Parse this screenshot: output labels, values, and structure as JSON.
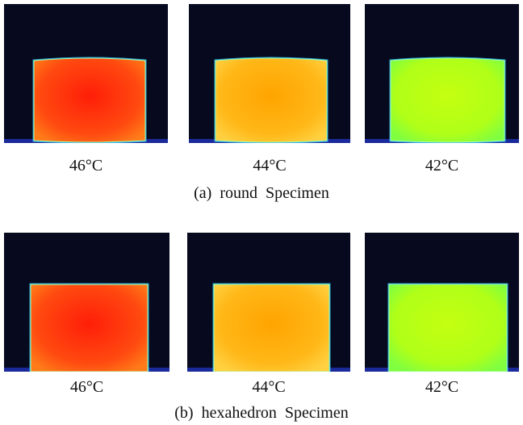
{
  "figures": [
    {
      "images": [
        {
          "label": "46°C"
        },
        {
          "label": "44°C"
        },
        {
          "label": "42°C"
        }
      ],
      "caption": "(a)  round  Specimen"
    },
    {
      "images": [
        {
          "label": "46°C"
        },
        {
          "label": "44°C"
        },
        {
          "label": "42°C"
        }
      ],
      "caption": "(b)  hexahedron  Specimen"
    }
  ]
}
